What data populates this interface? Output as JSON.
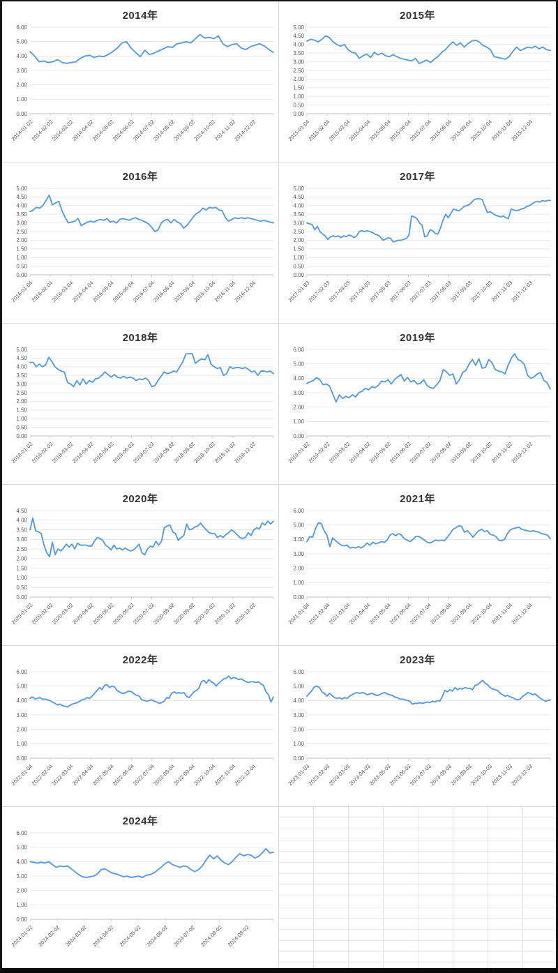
{
  "page": {
    "description": "Excel sheet with eleven yearly line charts (weekly price/yield series) arranged in a 2x6 grid, bottom-right area is empty spreadsheet cells",
    "background": "#ffffff",
    "frame_color": "#151515"
  },
  "style": {
    "line_color": "#5b9bd5",
    "gridline_color": "#e2e2e2",
    "axis_color": "#bfbfbf",
    "tick_label_color": "#595959",
    "title_color": "#333333"
  },
  "chart_data": [
    {
      "type": "line",
      "title": "2014年",
      "xlabel": "",
      "ylabel": "",
      "ylim": [
        0,
        6
      ],
      "y_step": 1,
      "grid": true,
      "legend": "none",
      "x_tick_labels": [
        "2014-01-02",
        "2014-02-02",
        "2014-03-02",
        "2014-04-02",
        "2014-05-02",
        "2014-06-02",
        "2014-07-02",
        "2014-08-02",
        "2014-09-02",
        "2014-10-02",
        "2014-11-02",
        "2014-12-02"
      ],
      "values": [
        4.3,
        4.0,
        3.6,
        3.65,
        3.55,
        3.6,
        3.75,
        3.55,
        3.5,
        3.55,
        3.6,
        3.85,
        4.0,
        4.05,
        3.9,
        4.0,
        3.95,
        4.1,
        4.3,
        4.55,
        4.9,
        5.0,
        4.55,
        4.25,
        3.95,
        4.4,
        4.1,
        4.2,
        4.35,
        4.5,
        4.65,
        4.6,
        4.85,
        4.9,
        5.0,
        4.9,
        5.2,
        5.5,
        5.25,
        5.3,
        5.2,
        5.4,
        4.85,
        4.65,
        4.8,
        4.85,
        4.55,
        4.45,
        4.65,
        4.75,
        4.85,
        4.7,
        4.45,
        4.25
      ]
    },
    {
      "type": "line",
      "title": "2015年",
      "xlabel": "",
      "ylabel": "",
      "ylim": [
        0,
        5
      ],
      "y_step": 0.5,
      "grid": true,
      "legend": "none",
      "x_tick_labels": [
        "2015-01-04",
        "2015-02-04",
        "2015-03-04",
        "2015-04-04",
        "2015-05-04",
        "2015-06-04",
        "2015-07-04",
        "2015-08-04",
        "2015-09-04",
        "2015-10-04",
        "2015-11-04",
        "2015-12-04"
      ],
      "values": [
        4.2,
        4.3,
        4.25,
        4.15,
        4.3,
        4.5,
        4.4,
        4.15,
        4.0,
        3.9,
        4.0,
        3.7,
        3.55,
        3.5,
        3.2,
        3.35,
        3.45,
        3.25,
        3.55,
        3.4,
        3.5,
        3.35,
        3.3,
        3.4,
        3.3,
        3.2,
        3.15,
        3.1,
        3.05,
        3.2,
        2.9,
        3.0,
        3.1,
        2.95,
        3.15,
        3.3,
        3.55,
        3.7,
        3.95,
        4.15,
        3.95,
        4.1,
        3.85,
        4.05,
        4.2,
        4.25,
        4.15,
        3.95,
        3.85,
        3.7,
        3.3,
        3.25,
        3.2,
        3.15,
        3.3,
        3.6,
        3.85,
        3.65,
        3.75,
        3.85,
        3.8,
        3.9,
        3.75,
        3.85,
        3.7,
        3.65
      ]
    },
    {
      "type": "line",
      "title": "2016年",
      "xlabel": "",
      "ylabel": "",
      "ylim": [
        0,
        5
      ],
      "y_step": 0.5,
      "grid": true,
      "legend": "none",
      "x_tick_labels": [
        "2016-01-04",
        "2016-02-04",
        "2016-03-04",
        "2016-04-04",
        "2016-05-04",
        "2016-06-04",
        "2016-07-04",
        "2016-08-04",
        "2016-09-04",
        "2016-10-04",
        "2016-11-04",
        "2016-12-04"
      ],
      "values": [
        3.65,
        3.75,
        3.9,
        3.85,
        4.0,
        4.3,
        4.6,
        4.05,
        4.15,
        4.25,
        3.7,
        3.3,
        3.0,
        3.05,
        3.1,
        3.25,
        2.85,
        2.95,
        3.05,
        3.1,
        3.05,
        3.15,
        3.2,
        3.15,
        3.25,
        3.05,
        3.1,
        3.0,
        3.2,
        3.25,
        3.2,
        3.15,
        3.25,
        3.3,
        3.2,
        3.15,
        3.05,
        2.95,
        2.75,
        2.5,
        2.6,
        3.0,
        3.15,
        3.2,
        3.0,
        3.2,
        3.05,
        2.95,
        2.7,
        2.85,
        3.1,
        3.35,
        3.55,
        3.65,
        3.85,
        3.75,
        3.9,
        3.85,
        3.9,
        3.75,
        3.7,
        3.3,
        3.1,
        3.2,
        3.3,
        3.25,
        3.3,
        3.25,
        3.3,
        3.25,
        3.2,
        3.15,
        3.1,
        3.15,
        3.1,
        3.05,
        3.0
      ]
    },
    {
      "type": "line",
      "title": "2017年",
      "xlabel": "",
      "ylabel": "",
      "ylim": [
        0,
        5
      ],
      "y_step": 0.5,
      "grid": true,
      "legend": "none",
      "x_tick_labels": [
        "2017-01-03",
        "2017-02-03",
        "2017-03-03",
        "2017-04-03",
        "2017-05-03",
        "2017-06-03",
        "2017-07-03",
        "2017-08-03",
        "2017-09-03",
        "2017-10-03",
        "2017-11-03",
        "2017-12-03"
      ],
      "values": [
        3.0,
        2.95,
        2.9,
        2.6,
        2.8,
        2.5,
        2.35,
        2.25,
        2.05,
        2.2,
        2.25,
        2.2,
        2.25,
        2.15,
        2.25,
        2.2,
        2.3,
        2.25,
        2.15,
        2.25,
        2.5,
        2.55,
        2.5,
        2.55,
        2.5,
        2.45,
        2.35,
        2.3,
        2.2,
        2.0,
        2.05,
        2.15,
        2.1,
        1.9,
        1.95,
        2.0,
        2.0,
        2.05,
        2.1,
        2.3,
        3.4,
        3.35,
        3.25,
        3.0,
        2.85,
        2.2,
        2.25,
        2.6,
        2.55,
        2.4,
        2.35,
        2.7,
        3.15,
        3.5,
        3.3,
        3.55,
        3.8,
        3.75,
        3.7,
        3.8,
        3.95,
        4.0,
        4.05,
        4.2,
        4.35,
        4.4,
        4.4,
        4.35,
        3.95,
        3.6,
        3.65,
        3.55,
        3.45,
        3.4,
        3.35,
        3.4,
        3.3,
        3.25,
        3.8,
        3.75,
        3.7,
        3.75,
        3.8,
        3.85,
        3.95,
        4.0,
        4.1,
        4.2,
        4.25,
        4.2,
        4.3,
        4.25,
        4.3,
        4.3
      ]
    },
    {
      "type": "line",
      "title": "2018年",
      "xlabel": "",
      "ylabel": "",
      "ylim": [
        0,
        5
      ],
      "y_step": 0.5,
      "grid": true,
      "legend": "none",
      "x_tick_labels": [
        "2018-01-02",
        "2018-02-02",
        "2018-03-02",
        "2018-04-02",
        "2018-05-02",
        "2018-06-02",
        "2018-07-02",
        "2018-08-02",
        "2018-09-02",
        "2018-10-02",
        "2018-11-02",
        "2018-12-02"
      ],
      "values": [
        4.25,
        4.25,
        4.0,
        4.15,
        4.0,
        4.1,
        4.55,
        4.3,
        4.0,
        3.85,
        3.75,
        3.7,
        3.1,
        3.0,
        2.85,
        3.2,
        2.95,
        3.3,
        3.0,
        3.2,
        3.1,
        3.3,
        3.35,
        3.5,
        3.7,
        3.55,
        3.4,
        3.55,
        3.4,
        3.35,
        3.45,
        3.35,
        3.4,
        3.35,
        3.2,
        3.3,
        3.25,
        3.35,
        3.2,
        2.85,
        2.9,
        3.2,
        3.45,
        3.7,
        3.6,
        3.65,
        3.75,
        3.7,
        4.0,
        4.3,
        4.75,
        4.75,
        4.75,
        4.2,
        4.35,
        4.45,
        4.4,
        4.7,
        4.15,
        4.0,
        3.9,
        3.95,
        3.5,
        3.6,
        4.0,
        3.9,
        3.95,
        3.95,
        3.9,
        3.95,
        3.85,
        3.7,
        3.75,
        3.5,
        3.75,
        3.75,
        3.7,
        3.75,
        3.6
      ]
    },
    {
      "type": "line",
      "title": "2019年",
      "xlabel": "",
      "ylabel": "",
      "ylim": [
        0,
        6
      ],
      "y_step": 1,
      "grid": true,
      "legend": "none",
      "x_tick_labels": [
        "2019-01-02",
        "2019-02-02",
        "2019-03-02",
        "2019-04-02",
        "2019-05-02",
        "2019-06-02",
        "2019-07-02",
        "2019-08-02",
        "2019-09-02",
        "2019-10-02",
        "2019-11-02",
        "2019-12-02"
      ],
      "values": [
        3.65,
        3.75,
        3.85,
        4.05,
        3.9,
        3.55,
        3.6,
        3.45,
        2.9,
        2.35,
        2.85,
        2.6,
        2.75,
        2.65,
        2.85,
        2.7,
        3.0,
        3.1,
        3.3,
        3.2,
        3.4,
        3.35,
        3.5,
        3.8,
        3.75,
        3.9,
        3.6,
        3.9,
        4.1,
        4.25,
        3.8,
        4.05,
        3.75,
        3.85,
        3.6,
        3.65,
        3.9,
        3.5,
        3.35,
        3.3,
        3.55,
        3.85,
        4.6,
        4.45,
        4.2,
        4.3,
        3.6,
        3.9,
        4.4,
        4.55,
        5.0,
        5.3,
        4.9,
        5.35,
        4.7,
        4.75,
        5.3,
        5.1,
        4.6,
        4.5,
        4.45,
        4.3,
        4.9,
        5.4,
        5.7,
        5.3,
        5.2,
        4.95,
        4.2,
        4.0,
        4.1,
        4.3,
        4.4,
        3.85,
        3.7,
        3.25
      ]
    },
    {
      "type": "line",
      "title": "2020年",
      "xlabel": "",
      "ylabel": "",
      "ylim": [
        0,
        4.5
      ],
      "y_step": 0.5,
      "grid": true,
      "legend": "none",
      "x_tick_labels": [
        "2020-01-02",
        "2020-02-02",
        "2020-03-02",
        "2020-04-02",
        "2020-05-02",
        "2020-06-02",
        "2020-07-02",
        "2020-08-02",
        "2020-09-02",
        "2020-10-02",
        "2020-11-02",
        "2020-12-02"
      ],
      "values": [
        3.5,
        4.1,
        3.45,
        3.4,
        3.3,
        2.7,
        2.3,
        2.1,
        2.85,
        2.2,
        2.5,
        2.4,
        2.55,
        2.75,
        2.6,
        2.75,
        2.5,
        2.8,
        2.7,
        2.7,
        2.7,
        2.65,
        2.65,
        2.9,
        3.1,
        3.05,
        2.95,
        2.7,
        2.6,
        2.45,
        2.7,
        2.5,
        2.55,
        2.45,
        2.55,
        2.45,
        2.4,
        2.45,
        2.6,
        2.75,
        2.3,
        2.2,
        2.5,
        2.65,
        2.6,
        2.9,
        2.7,
        2.9,
        3.6,
        3.7,
        3.75,
        3.4,
        3.3,
        2.95,
        3.1,
        3.2,
        3.8,
        3.5,
        3.55,
        3.65,
        3.7,
        3.85,
        3.65,
        3.5,
        3.35,
        3.3,
        3.3,
        3.1,
        3.2,
        3.1,
        3.25,
        3.35,
        3.5,
        3.4,
        3.25,
        3.1,
        3.05,
        3.1,
        3.35,
        3.2,
        3.5,
        3.6,
        3.55,
        3.85,
        3.75,
        3.95,
        3.8,
        3.95
      ]
    },
    {
      "type": "line",
      "title": "2021年",
      "xlabel": "",
      "ylabel": "",
      "ylim": [
        0,
        6
      ],
      "y_step": 1,
      "grid": true,
      "legend": "none",
      "x_tick_labels": [
        "2021-01-04",
        "2021-02-04",
        "2021-03-04",
        "2021-04-04",
        "2021-05-04",
        "2021-06-04",
        "2021-07-04",
        "2021-08-04",
        "2021-09-04",
        "2021-10-04",
        "2021-11-04",
        "2021-12-04"
      ],
      "values": [
        3.85,
        4.2,
        4.15,
        4.75,
        5.15,
        5.1,
        4.6,
        4.3,
        3.5,
        4.1,
        3.9,
        3.75,
        3.6,
        3.55,
        3.6,
        3.4,
        3.45,
        3.4,
        3.5,
        3.4,
        3.55,
        3.75,
        3.6,
        3.8,
        3.7,
        3.75,
        3.85,
        3.8,
        3.95,
        4.3,
        4.4,
        4.25,
        4.4,
        4.3,
        4.05,
        3.95,
        3.85,
        4.0,
        4.2,
        4.2,
        4.1,
        3.95,
        3.8,
        3.75,
        3.85,
        3.95,
        3.9,
        3.95,
        3.9,
        4.15,
        4.4,
        4.7,
        4.8,
        4.95,
        4.9,
        4.5,
        4.6,
        4.4,
        4.15,
        4.4,
        4.6,
        4.7,
        4.55,
        4.6,
        4.35,
        4.3,
        4.2,
        3.95,
        3.9,
        4.0,
        4.4,
        4.65,
        4.75,
        4.8,
        4.85,
        4.7,
        4.65,
        4.6,
        4.55,
        4.6,
        4.55,
        4.5,
        4.4,
        4.35,
        4.3,
        4.05
      ]
    },
    {
      "type": "line",
      "title": "2022年",
      "xlabel": "",
      "ylabel": "",
      "ylim": [
        0,
        6
      ],
      "y_step": 1,
      "grid": true,
      "legend": "none",
      "x_tick_labels": [
        "2022-01-04",
        "2022-02-04",
        "2022-03-04",
        "2022-04-04",
        "2022-05-04",
        "2022-06-04",
        "2022-07-04",
        "2022-08-04",
        "2022-09-04",
        "2022-10-04",
        "2022-11-04",
        "2022-12-04"
      ],
      "values": [
        4.15,
        4.25,
        4.1,
        4.15,
        4.2,
        4.1,
        4.1,
        4.05,
        4.0,
        3.9,
        3.8,
        3.7,
        3.75,
        3.65,
        3.6,
        3.55,
        3.65,
        3.75,
        3.8,
        3.85,
        3.95,
        4.05,
        4.1,
        4.2,
        4.15,
        4.3,
        4.5,
        4.7,
        4.9,
        4.75,
        5.05,
        5.1,
        4.9,
        5.0,
        4.95,
        4.7,
        4.6,
        4.5,
        4.5,
        4.6,
        4.65,
        4.6,
        4.45,
        4.35,
        4.3,
        4.05,
        4.0,
        3.95,
        4.0,
        4.05,
        3.95,
        3.9,
        3.8,
        3.85,
        3.95,
        4.2,
        4.15,
        4.5,
        4.6,
        4.5,
        4.55,
        4.5,
        4.55,
        4.3,
        4.2,
        4.4,
        4.6,
        4.7,
        4.85,
        5.3,
        5.4,
        5.2,
        5.45,
        5.3,
        5.2,
        5.0,
        5.2,
        5.35,
        5.5,
        5.55,
        5.7,
        5.5,
        5.6,
        5.55,
        5.45,
        5.5,
        5.4,
        5.3,
        5.25,
        5.3,
        5.3,
        5.25,
        5.3,
        5.15,
        5.05,
        4.6,
        4.4,
        3.9,
        4.25
      ]
    },
    {
      "type": "line",
      "title": "2023年",
      "xlabel": "",
      "ylabel": "",
      "ylim": [
        0,
        6
      ],
      "y_step": 1,
      "grid": true,
      "legend": "none",
      "x_tick_labels": [
        "2023-01-03",
        "2023-02-03",
        "2023-03-03",
        "2023-04-03",
        "2023-05-03",
        "2023-06-03",
        "2023-07-03",
        "2023-08-03",
        "2023-09-03",
        "2023-10-03",
        "2023-11-03",
        "2023-12-03"
      ],
      "values": [
        4.3,
        4.5,
        4.7,
        4.95,
        5.0,
        4.9,
        4.6,
        4.5,
        4.3,
        4.5,
        4.35,
        4.2,
        4.15,
        4.2,
        4.1,
        4.2,
        4.15,
        4.3,
        4.4,
        4.5,
        4.55,
        4.5,
        4.55,
        4.5,
        4.4,
        4.45,
        4.5,
        4.4,
        4.35,
        4.4,
        4.5,
        4.55,
        4.45,
        4.4,
        4.35,
        4.25,
        4.2,
        4.1,
        4.1,
        4.05,
        4.0,
        3.95,
        3.75,
        3.8,
        3.8,
        3.85,
        3.8,
        3.85,
        3.9,
        3.85,
        3.95,
        3.9,
        4.0,
        3.95,
        4.3,
        4.7,
        4.6,
        4.75,
        4.65,
        4.9,
        4.75,
        4.85,
        4.8,
        4.9,
        4.85,
        4.85,
        4.75,
        5.05,
        5.1,
        5.25,
        5.4,
        5.2,
        5.1,
        4.9,
        4.8,
        4.75,
        4.7,
        4.5,
        4.4,
        4.3,
        4.35,
        4.25,
        4.2,
        4.1,
        4.05,
        4.1,
        4.3,
        4.4,
        4.55,
        4.5,
        4.4,
        4.45,
        4.3,
        4.15,
        4.05,
        3.95,
        4.0,
        4.05
      ]
    },
    {
      "type": "line",
      "title": "2024年",
      "xlabel": "",
      "ylabel": "",
      "ylim": [
        0,
        6
      ],
      "y_step": 1,
      "grid": true,
      "legend": "none",
      "x_tick_labels": [
        "2024-01-02",
        "2024-02-02",
        "2024-03-02",
        "2024-04-02",
        "2024-05-02",
        "2024-06-02",
        "2024-07-02",
        "2024-08-02",
        "2024-09-02"
      ],
      "values": [
        4.0,
        3.95,
        3.9,
        3.95,
        3.9,
        4.0,
        3.8,
        3.6,
        3.7,
        3.65,
        3.7,
        3.5,
        3.3,
        3.1,
        2.95,
        2.9,
        2.95,
        3.0,
        3.15,
        3.45,
        3.5,
        3.35,
        3.2,
        3.15,
        3.05,
        2.95,
        3.0,
        2.9,
        2.95,
        3.0,
        2.9,
        3.05,
        3.1,
        3.2,
        3.4,
        3.6,
        3.85,
        4.0,
        3.8,
        3.7,
        3.6,
        3.7,
        3.65,
        3.45,
        3.3,
        3.45,
        3.7,
        4.1,
        4.45,
        4.2,
        4.4,
        4.1,
        3.9,
        3.8,
        4.0,
        4.3,
        4.55,
        4.4,
        4.5,
        4.45,
        4.25,
        4.35,
        4.6,
        4.9,
        4.6,
        4.65
      ]
    }
  ],
  "empty_panel": {
    "kind": "spreadsheet-cells",
    "text": ""
  }
}
